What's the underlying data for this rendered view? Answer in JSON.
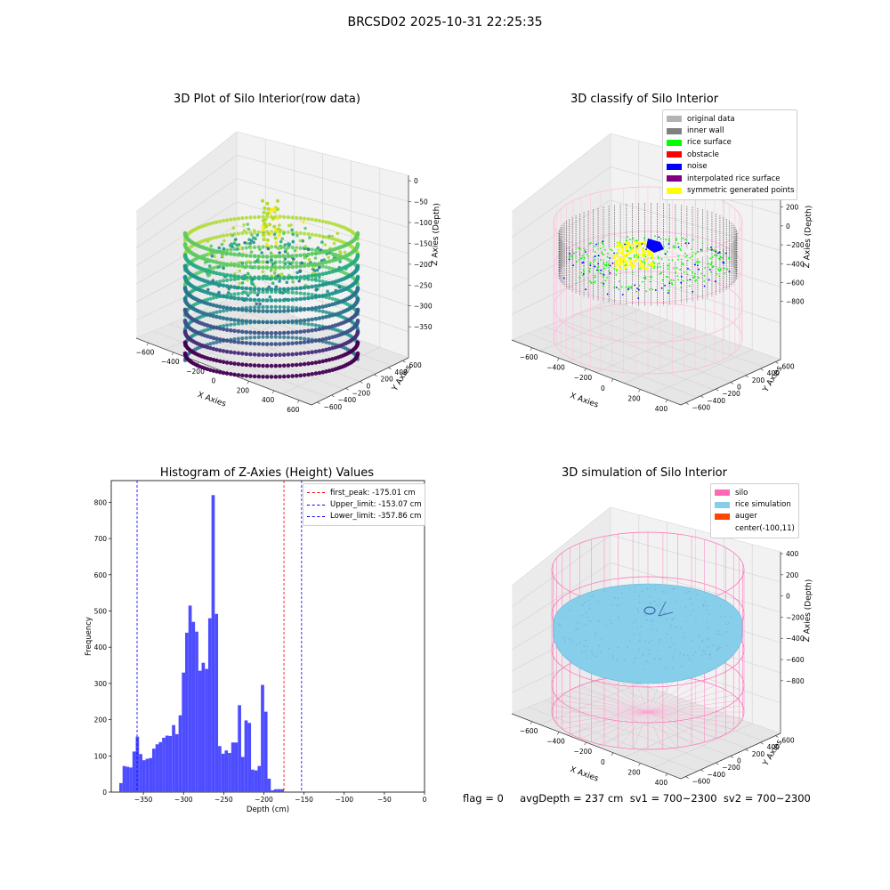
{
  "figure": {
    "suptitle": "BRCSD02 2025-10-31 22:25:35",
    "footer": "flag = 0     avgDepth = 237 cm  sv1 = 700~2300  sv2 = 700~2300"
  },
  "chart_data": [
    {
      "type": "scatter3d",
      "title": "3D Plot of Silo Interior(row data)",
      "xlabel": "X Axies",
      "ylabel": "Y Axies",
      "zlabel": "Z Axies (Depth)",
      "xticks": [
        "−600",
        "−400",
        "−200",
        "0",
        "200",
        "400",
        "600"
      ],
      "yticks": [
        "−600",
        "−400",
        "−200",
        "0",
        "200",
        "400",
        "600"
      ],
      "zticks": [
        "0",
        "−50",
        "−100",
        "−150",
        "−200",
        "−250",
        "−300",
        "−350"
      ],
      "colormap": "viridis"
    },
    {
      "type": "scatter3d",
      "title": "3D classify of Silo Interior",
      "xlabel": "X Axies",
      "ylabel": "Y Axies",
      "zlabel": "Z Axies (Depth)",
      "xticks": [
        "−600",
        "−400",
        "−200",
        "0",
        "200",
        "400"
      ],
      "yticks": [
        "−600",
        "−400",
        "−200",
        "0",
        "200",
        "400",
        "600"
      ],
      "zticks": [
        "200",
        "0",
        "−200",
        "−400",
        "−600",
        "−800"
      ],
      "legend": [
        {
          "label": "original data",
          "color": "#b3b3b3"
        },
        {
          "label": "inner wall",
          "color": "#808080"
        },
        {
          "label": "rice surface",
          "color": "#00ff00"
        },
        {
          "label": "obstacle",
          "color": "#ff0000"
        },
        {
          "label": "noise",
          "color": "#0000ff"
        },
        {
          "label": "interpolated rice surface",
          "color": "#800080"
        },
        {
          "label": "symmetric generated points",
          "color": "#ffff00"
        }
      ]
    },
    {
      "type": "bar",
      "title": "Histogram of Z-Axies (Height) Values",
      "xlabel": "Depth (cm)",
      "ylabel": "Frequency",
      "xlim": [
        -390,
        0
      ],
      "ylim": [
        0,
        860
      ],
      "xticks": [
        -350,
        -300,
        -250,
        -200,
        -150,
        -100,
        -50,
        0
      ],
      "xticklabels": [
        "−350",
        "−300",
        "−250",
        "−200",
        "−150",
        "−100",
        "−50",
        "0"
      ],
      "yticks": [
        0,
        100,
        200,
        300,
        400,
        500,
        600,
        700,
        800
      ],
      "bin_start": -380,
      "bin_width": 4.1,
      "values": [
        25,
        72,
        70,
        68,
        112,
        153,
        105,
        88,
        92,
        94,
        120,
        132,
        138,
        150,
        156,
        155,
        185,
        160,
        212,
        330,
        440,
        515,
        470,
        443,
        335,
        357,
        340,
        480,
        820,
        492,
        127,
        106,
        115,
        108,
        137,
        137,
        240,
        97,
        198,
        191,
        62,
        60,
        72,
        296,
        222,
        37,
        5,
        8,
        8,
        8
      ],
      "bar_color": "#4d4dff",
      "lines": [
        {
          "label": "first_peak: -175.01 cm",
          "x": -175.01,
          "color": "#ff0000"
        },
        {
          "label": "Upper_limit: -153.07 cm",
          "x": -153.07,
          "color": "#0000ff"
        },
        {
          "label": "Lower_limit: -357.86 cm",
          "x": -357.86,
          "color": "#0000ff"
        }
      ]
    },
    {
      "type": "surface3d",
      "title": "3D simulation of Silo Interior",
      "xlabel": "X Axies",
      "ylabel": "Y Axies",
      "zlabel": "Z Axies (Depth)",
      "xticks": [
        "−600",
        "−400",
        "−200",
        "0",
        "200",
        "400"
      ],
      "yticks": [
        "−600",
        "−400",
        "−200",
        "0",
        "200",
        "400",
        "600"
      ],
      "zticks": [
        "400",
        "200",
        "0",
        "−200",
        "−400",
        "−600",
        "−800"
      ],
      "legend": [
        {
          "label": "silo",
          "color": "#ff69b4"
        },
        {
          "label": "rice simulation",
          "color": "#87ceeb"
        },
        {
          "label": "auger",
          "color": "#ff4500"
        },
        {
          "label": "center(-100,11)",
          "color": ""
        }
      ]
    }
  ]
}
